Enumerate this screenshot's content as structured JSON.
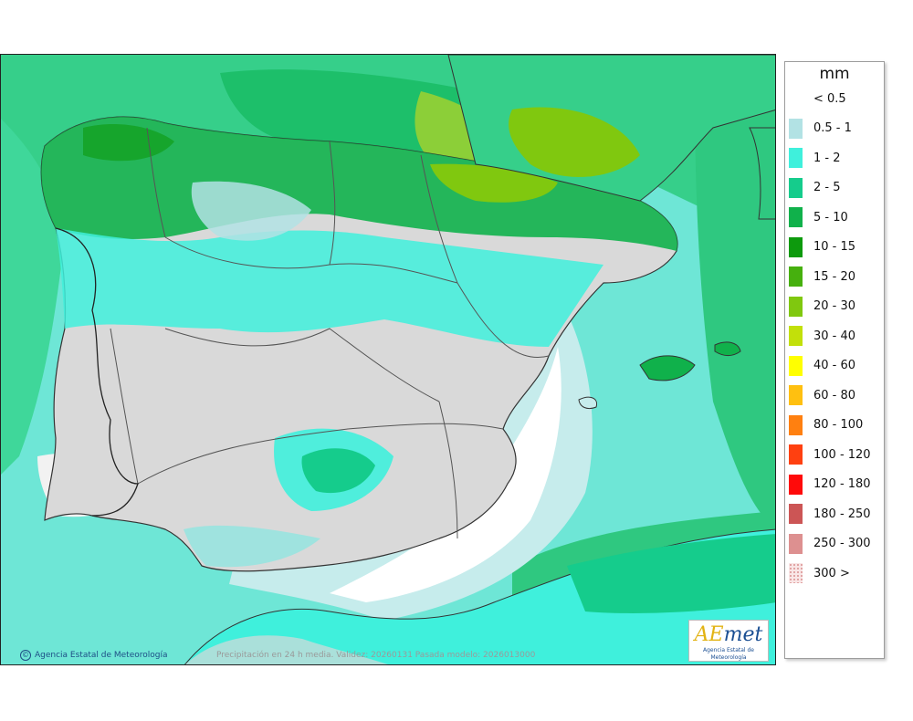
{
  "legend": {
    "title": "mm",
    "items": [
      {
        "label": "< 0.5",
        "color": ""
      },
      {
        "label": "0.5 - 1",
        "color": "#b2e2e4"
      },
      {
        "label": "1 - 2",
        "color": "#3ff0dc"
      },
      {
        "label": "2 - 5",
        "color": "#15cc8c"
      },
      {
        "label": "5 - 10",
        "color": "#10b14b"
      },
      {
        "label": "10 - 15",
        "color": "#0d9a0d"
      },
      {
        "label": "15 - 20",
        "color": "#46b00e"
      },
      {
        "label": "20 - 30",
        "color": "#80c80f"
      },
      {
        "label": "30 - 40",
        "color": "#c2e00a"
      },
      {
        "label": "40 - 60",
        "color": "#ffff00"
      },
      {
        "label": "60 - 80",
        "color": "#ffc010"
      },
      {
        "label": "80 - 100",
        "color": "#ff8010"
      },
      {
        "label": "100 - 120",
        "color": "#ff4010"
      },
      {
        "label": "120 - 180",
        "color": "#ff0a0a"
      },
      {
        "label": "180 - 250",
        "color": "#cc5555"
      },
      {
        "label": "250 - 300",
        "color": "#dd9090"
      },
      {
        "label": "300 >",
        "color": "dotted"
      }
    ]
  },
  "credit": "Agencia Estatal de Meteorología",
  "caption": "Precipitación en 24 h media. Validez: 20260131 Pasada modelo: 2026013000",
  "logo": {
    "word_a": "AE",
    "word_b": "met",
    "subtitle": "Agencia Estatal de Meteorología"
  }
}
